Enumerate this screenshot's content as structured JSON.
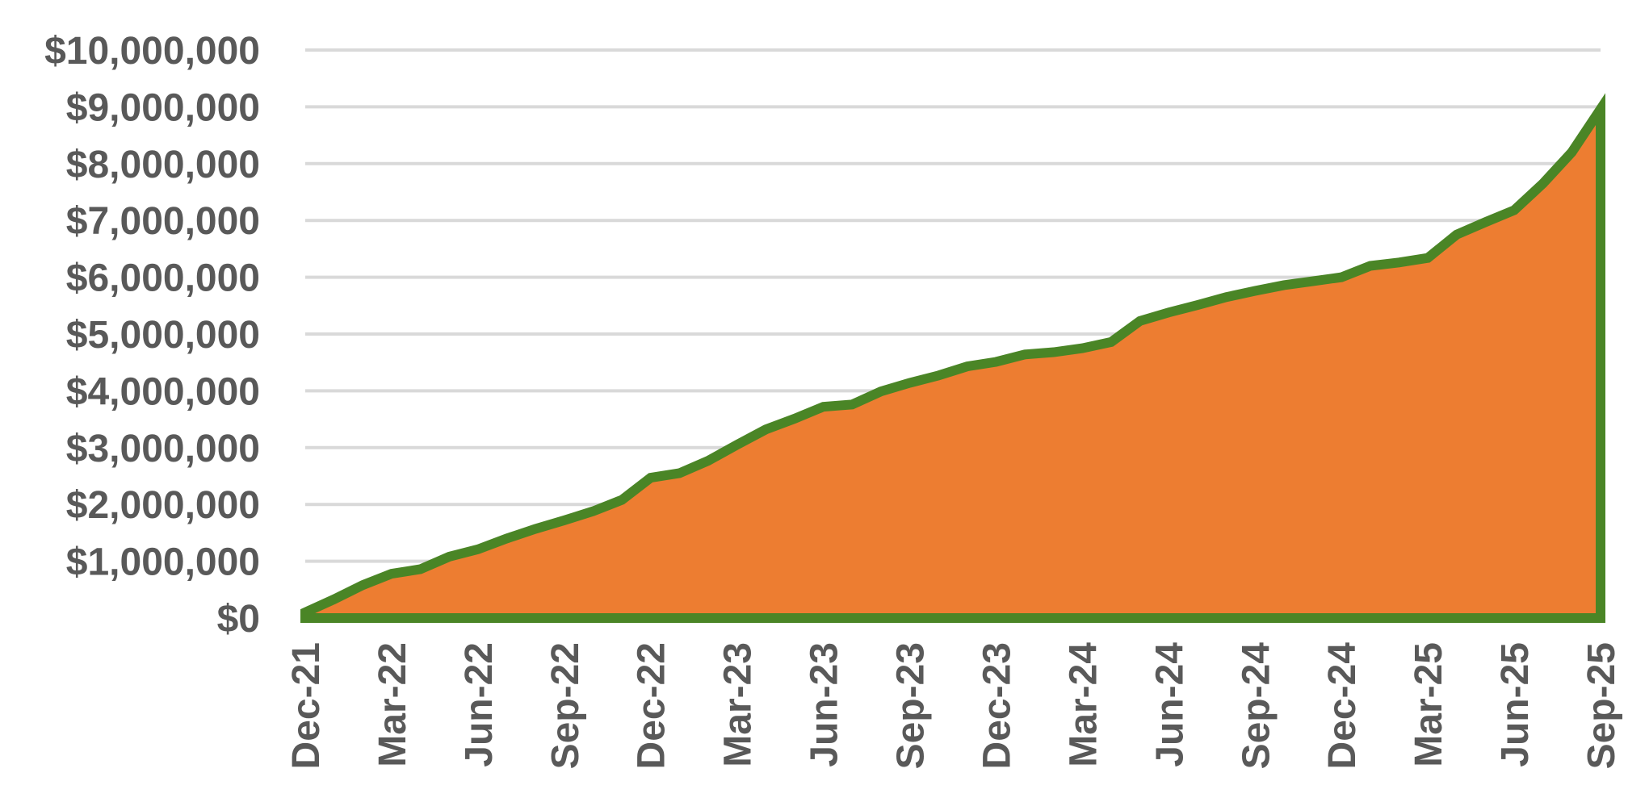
{
  "chart_data": {
    "type": "area",
    "title": "",
    "xlabel": "",
    "ylabel": "",
    "ylim": [
      0,
      10000000
    ],
    "yticks": [
      0,
      1000000,
      2000000,
      3000000,
      4000000,
      5000000,
      6000000,
      7000000,
      8000000,
      9000000,
      10000000
    ],
    "ytick_labels": [
      "$0",
      "$1,000,000",
      "$2,000,000",
      "$3,000,000",
      "$4,000,000",
      "$5,000,000",
      "$6,000,000",
      "$7,000,000",
      "$8,000,000",
      "$9,000,000",
      "$10,000,000"
    ],
    "xtick_labels": [
      "Dec-21",
      "Mar-22",
      "Jun-22",
      "Sep-22",
      "Dec-22",
      "Mar-23",
      "Jun-23",
      "Sep-23",
      "Dec-23",
      "Mar-24",
      "Jun-24",
      "Sep-24",
      "Dec-24",
      "Mar-25",
      "Jun-25",
      "Sep-25"
    ],
    "grid": true,
    "legend": false,
    "fill_color": "#ED7D31",
    "line_color": "#4A8526",
    "grid_color": "#D9D9D9",
    "label_color": "#595959",
    "x": [
      "Dec-21",
      "Jan-22",
      "Feb-22",
      "Mar-22",
      "Apr-22",
      "May-22",
      "Jun-22",
      "Jul-22",
      "Aug-22",
      "Sep-22",
      "Oct-22",
      "Nov-22",
      "Dec-22",
      "Jan-23",
      "Feb-23",
      "Mar-23",
      "Apr-23",
      "May-23",
      "Jun-23",
      "Jul-23",
      "Aug-23",
      "Sep-23",
      "Oct-23",
      "Nov-23",
      "Dec-23",
      "Jan-24",
      "Feb-24",
      "Mar-24",
      "Apr-24",
      "May-24",
      "Jun-24",
      "Jul-24",
      "Aug-24",
      "Sep-24",
      "Oct-24",
      "Nov-24",
      "Dec-24",
      "Jan-25",
      "Feb-25",
      "Mar-25",
      "Apr-25",
      "May-25",
      "Jun-25",
      "Jul-25",
      "Aug-25",
      "Sep-25"
    ],
    "values": [
      100000,
      330000,
      580000,
      780000,
      860000,
      1080000,
      1210000,
      1400000,
      1570000,
      1720000,
      1880000,
      2080000,
      2470000,
      2550000,
      2770000,
      3050000,
      3320000,
      3510000,
      3720000,
      3760000,
      3990000,
      4140000,
      4270000,
      4430000,
      4510000,
      4640000,
      4680000,
      4750000,
      4860000,
      5230000,
      5380000,
      5510000,
      5650000,
      5760000,
      5860000,
      5930000,
      6000000,
      6200000,
      6260000,
      6340000,
      6750000,
      6970000,
      7180000,
      7650000,
      8200000,
      8960000
    ]
  }
}
